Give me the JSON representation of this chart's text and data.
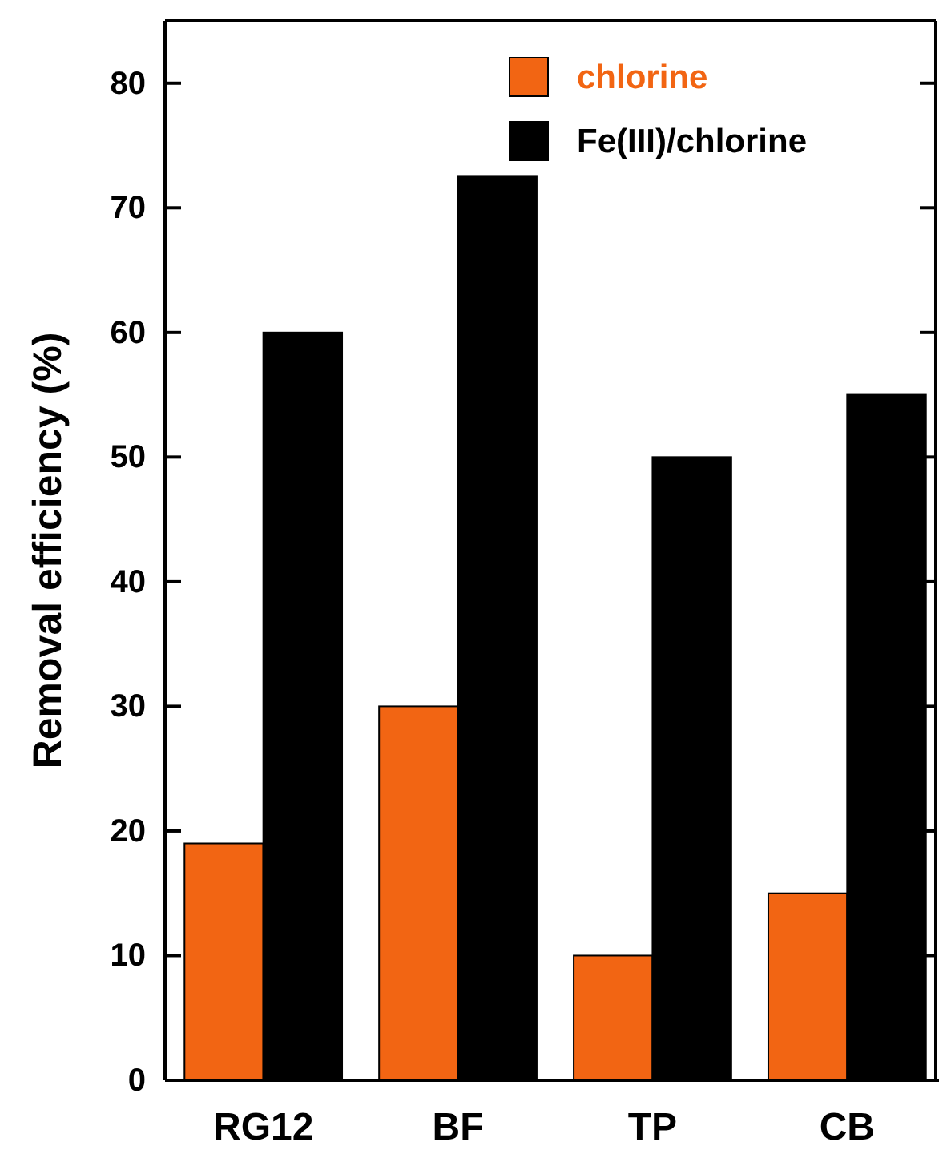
{
  "chart_data": {
    "type": "bar",
    "ylabel": "Removal efficiency (%)",
    "categories": [
      "RG12",
      "BF",
      "TP",
      "CB"
    ],
    "series": [
      {
        "name": "chlorine",
        "color": "#f26513",
        "values": [
          19,
          30,
          10,
          15
        ]
      },
      {
        "name": "Fe(III)/chlorine",
        "color": "#000000",
        "values": [
          60,
          72.5,
          50,
          55
        ]
      }
    ],
    "ylim": [
      0,
      85
    ],
    "yticks": [
      0,
      10,
      20,
      30,
      40,
      50,
      60,
      70,
      80
    ],
    "legend": "top right",
    "grid": false
  }
}
